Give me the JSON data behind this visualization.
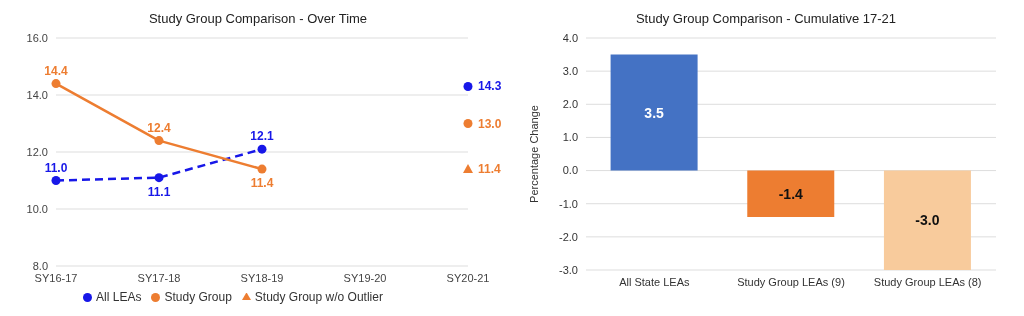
{
  "chart_data": [
    {
      "type": "line",
      "title": "Study Group Comparison - Over Time",
      "categories": [
        "SY16-17",
        "SY17-18",
        "SY18-19",
        "SY19-20",
        "SY20-21"
      ],
      "ylim": [
        8,
        16
      ],
      "yticks": [
        {
          "value": 8,
          "label": "8.0"
        },
        {
          "value": 10,
          "label": "10.0"
        },
        {
          "value": 12,
          "label": "12.0"
        },
        {
          "value": 14,
          "label": "14.0"
        },
        {
          "value": 16,
          "label": "16.0"
        }
      ],
      "grid": "y",
      "legend": "bottom",
      "series": [
        {
          "name": "All LEAs",
          "color": "#1717e8",
          "values": [
            11.0,
            11.1,
            12.1,
            null,
            14.3
          ],
          "value_labels": [
            "11.0",
            "11.1",
            "12.1",
            null,
            "14.3"
          ],
          "marker": "circle",
          "line_style": "dashed"
        },
        {
          "name": "Study Group",
          "color": "#ed7d31",
          "values": [
            14.4,
            12.4,
            11.4,
            null,
            13.0
          ],
          "value_labels": [
            "14.4",
            "12.4",
            "11.4",
            null,
            "13.0"
          ],
          "marker": "circle",
          "line_style": "solid"
        },
        {
          "name": "Study Group w/o Outlier",
          "type": "scatter",
          "color": "#ed7d31",
          "values": [
            null,
            null,
            null,
            null,
            11.4
          ],
          "value_labels": [
            null,
            null,
            null,
            null,
            "11.4"
          ],
          "marker": "triangle"
        }
      ]
    },
    {
      "type": "bar",
      "title": "Study Group Comparison - Cumulative 17-21",
      "ylabel": "Percentage Change",
      "categories": [
        "All State LEAs",
        "Study Group LEAs (9)",
        "Study Group LEAs (8)"
      ],
      "values": [
        3.5,
        -1.4,
        -3.0
      ],
      "value_labels": [
        "3.5",
        "-1.4",
        "-3.0"
      ],
      "colors": [
        "#4472c4",
        "#ed7d31",
        "#f8cb9c"
      ],
      "ylim": [
        -3,
        4
      ],
      "yticks": [
        {
          "value": -3,
          "label": "-3.0"
        },
        {
          "value": -2,
          "label": "-2.0"
        },
        {
          "value": -1,
          "label": "-1.0"
        },
        {
          "value": 0,
          "label": "0.0"
        },
        {
          "value": 1,
          "label": "1.0"
        },
        {
          "value": 2,
          "label": "2.0"
        },
        {
          "value": 3,
          "label": "3.0"
        },
        {
          "value": 4,
          "label": "4.0"
        }
      ],
      "grid": "y"
    }
  ]
}
